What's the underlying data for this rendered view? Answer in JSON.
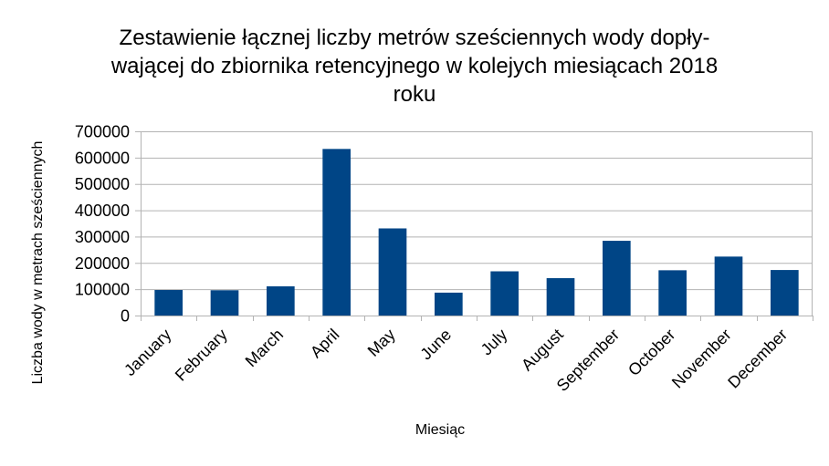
{
  "chart_data": {
    "type": "bar",
    "title_lines": [
      "Zestawienie łącznej liczby metrów sześciennych wody dopły-",
      "wającej do zbiornika retencyjnego w kolejych miesiącach 2018",
      "roku"
    ],
    "xlabel": "Miesiąc",
    "ylabel": "Liczba wody w metrach sześciennych",
    "categories": [
      "January",
      "February",
      "March",
      "April",
      "May",
      "June",
      "July",
      "August",
      "September",
      "October",
      "November",
      "December"
    ],
    "values": [
      97000,
      96000,
      111000,
      633000,
      331000,
      87000,
      168000,
      142000,
      284000,
      172000,
      224000,
      173000
    ],
    "ylim": [
      0,
      700000
    ],
    "yticks": [
      "0",
      "100000",
      "200000",
      "300000",
      "400000",
      "500000",
      "600000",
      "700000"
    ],
    "grid": true,
    "legend": "none",
    "bar_color": "#004586"
  }
}
